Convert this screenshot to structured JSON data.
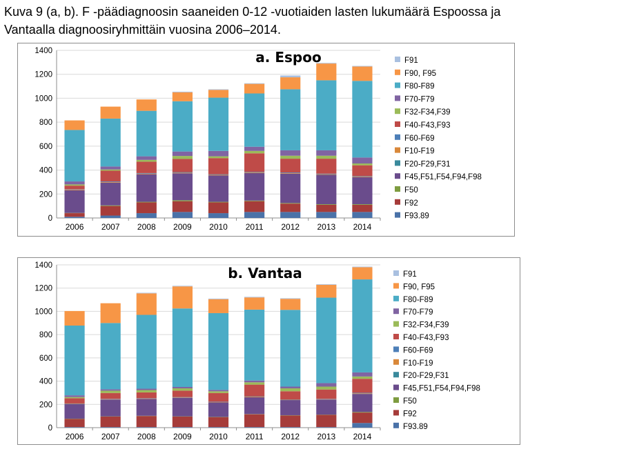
{
  "caption": {
    "line1": "Kuva 9 (a, b). F -päädiagnoosin saaneiden 0-12 -vuotiaiden lasten lukumäärä Espoossa ja",
    "line2": "Vantaalla diagnoosiryhmittäin vuosina 2006–2014."
  },
  "colors": {
    "F93.89": "#4a72a8",
    "F92": "#a63c3a",
    "F50": "#7e9c40",
    "F45, F51, F54, F94, F98": "#6a4c8c",
    "F20-F29, F31": "#3a8a9c",
    "F10-F19": "#d9883a",
    "F60-F69": "#4d7fb8",
    "F40-F43, F93": "#bf4b48",
    "F32-F34, F39": "#9bbb59",
    "F70-F79": "#8064a2",
    "F80-F89": "#4bacc6",
    "F90, F95": "#f79646",
    "F91": "#a9c0e0"
  },
  "chart_data": [
    {
      "type": "bar",
      "stacked": true,
      "title": "a. Espoo",
      "categories": [
        "2006",
        "2007",
        "2008",
        "2009",
        "2010",
        "2011",
        "2012",
        "2013",
        "2014"
      ],
      "ylim": [
        0,
        1400
      ],
      "yticks": [
        0,
        200,
        400,
        600,
        800,
        1000,
        1200,
        1400
      ],
      "legend_position": "right",
      "legend": [
        "F91",
        "F90, F95",
        "F80-F89",
        "F70-F79",
        "F32-F34,F39",
        "F40-F43,F93",
        "F60-F69",
        "F10-F19",
        "F20-F29,F31",
        "F45,F51,F54,F94,F98",
        "F50",
        "F92",
        "F93.89"
      ],
      "series": [
        {
          "name": "F93.89",
          "values": [
            10,
            20,
            40,
            50,
            40,
            50,
            50,
            50,
            50
          ]
        },
        {
          "name": "F92",
          "values": [
            30,
            80,
            90,
            90,
            90,
            90,
            70,
            60,
            60
          ]
        },
        {
          "name": "F50",
          "values": [
            2,
            5,
            5,
            8,
            5,
            5,
            5,
            5,
            5
          ]
        },
        {
          "name": "F45,F51,F54,F94,F98",
          "values": [
            190,
            190,
            230,
            225,
            220,
            230,
            245,
            245,
            225
          ]
        },
        {
          "name": "F20-F29,F31",
          "values": [
            0,
            0,
            0,
            0,
            0,
            0,
            0,
            0,
            0
          ]
        },
        {
          "name": "F10-F19",
          "values": [
            5,
            5,
            5,
            5,
            5,
            5,
            5,
            5,
            5
          ]
        },
        {
          "name": "F60-F69",
          "values": [
            3,
            5,
            5,
            5,
            5,
            5,
            5,
            5,
            5
          ]
        },
        {
          "name": "F40-F43,F93",
          "values": [
            30,
            90,
            95,
            110,
            135,
            155,
            115,
            125,
            90
          ]
        },
        {
          "name": "F32-F34,F39",
          "values": [
            10,
            10,
            15,
            25,
            15,
            20,
            25,
            25,
            15
          ]
        },
        {
          "name": "F70-F79",
          "values": [
            25,
            25,
            30,
            37,
            45,
            35,
            45,
            45,
            50
          ]
        },
        {
          "name": "F80-F89",
          "values": [
            430,
            400,
            380,
            420,
            445,
            445,
            510,
            585,
            640
          ]
        },
        {
          "name": "F90, F95",
          "values": [
            80,
            100,
            95,
            75,
            65,
            80,
            100,
            140,
            120
          ]
        },
        {
          "name": "F91",
          "values": [
            0,
            0,
            0,
            5,
            5,
            5,
            15,
            5,
            5
          ]
        }
      ]
    },
    {
      "type": "bar",
      "stacked": true,
      "title": "b. Vantaa",
      "categories": [
        "2006",
        "2007",
        "2008",
        "2009",
        "2010",
        "2011",
        "2012",
        "2013",
        "2014"
      ],
      "ylim": [
        0,
        1400
      ],
      "yticks": [
        0,
        200,
        400,
        600,
        800,
        1000,
        1200,
        1400
      ],
      "legend_position": "right",
      "legend": [
        "F91",
        "F90, F95",
        "F80-F89",
        "F70-F79",
        "F32-F34,F39",
        "F40-F43,F93",
        "F60-F69",
        "F10-F19",
        "F20-F29,F31",
        "F45,F51,F54,F94,F98",
        "F50",
        "F92",
        "F93.89"
      ],
      "series": [
        {
          "name": "F93.89",
          "values": [
            5,
            5,
            5,
            5,
            5,
            5,
            5,
            5,
            40
          ]
        },
        {
          "name": "F92",
          "values": [
            70,
            90,
            95,
            90,
            85,
            110,
            100,
            105,
            90
          ]
        },
        {
          "name": "F50",
          "values": [
            2,
            2,
            2,
            2,
            2,
            2,
            2,
            2,
            5
          ]
        },
        {
          "name": "F45,F51,F54,F94,F98",
          "values": [
            125,
            145,
            145,
            160,
            125,
            145,
            130,
            130,
            155
          ]
        },
        {
          "name": "F20-F29,F31",
          "values": [
            0,
            0,
            0,
            0,
            0,
            0,
            0,
            0,
            0
          ]
        },
        {
          "name": "F10-F19",
          "values": [
            3,
            3,
            3,
            3,
            3,
            5,
            3,
            3,
            5
          ]
        },
        {
          "name": "F60-F69",
          "values": [
            3,
            3,
            3,
            3,
            3,
            3,
            3,
            3,
            5
          ]
        },
        {
          "name": "F40-F43,F93",
          "values": [
            45,
            50,
            50,
            55,
            75,
            100,
            70,
            80,
            120
          ]
        },
        {
          "name": "F32-F34,F39",
          "values": [
            10,
            20,
            20,
            20,
            15,
            20,
            25,
            25,
            20
          ]
        },
        {
          "name": "F70-F79",
          "values": [
            15,
            12,
            12,
            12,
            12,
            15,
            15,
            30,
            35
          ]
        },
        {
          "name": "F80-F89",
          "values": [
            600,
            570,
            635,
            675,
            660,
            610,
            660,
            735,
            800
          ]
        },
        {
          "name": "F90, F95",
          "values": [
            125,
            170,
            185,
            190,
            120,
            105,
            95,
            110,
            105
          ]
        },
        {
          "name": "F91",
          "values": [
            0,
            0,
            5,
            5,
            5,
            5,
            5,
            5,
            5
          ]
        }
      ]
    }
  ]
}
